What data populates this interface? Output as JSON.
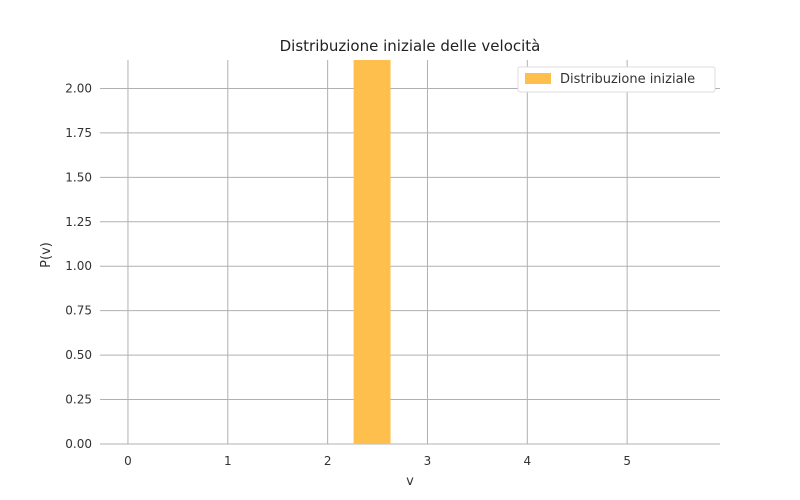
{
  "chart_data": {
    "type": "bar",
    "title": "Distribuzione iniziale delle velocità",
    "xlabel": "v",
    "ylabel": "P(v)",
    "xlim": [
      -0.28,
      5.93
    ],
    "ylim": [
      0,
      2.16
    ],
    "xticks": [
      0,
      1,
      2,
      3,
      4,
      5
    ],
    "yticks": [
      0.0,
      0.25,
      0.5,
      0.75,
      1.0,
      1.25,
      1.5,
      1.75,
      2.0
    ],
    "xtick_labels": [
      "0",
      "1",
      "2",
      "3",
      "4",
      "5"
    ],
    "ytick_labels": [
      "0.00",
      "0.25",
      "0.50",
      "0.75",
      "1.00",
      "1.25",
      "1.50",
      "1.75",
      "2.00"
    ],
    "grid": true,
    "legend_position": "top-right",
    "series": [
      {
        "name": "Distribuzione iniziale",
        "color": "#FFBF4D",
        "bars": [
          {
            "x0": 2.26,
            "x1": 2.63,
            "value": 2.16
          }
        ]
      }
    ]
  }
}
